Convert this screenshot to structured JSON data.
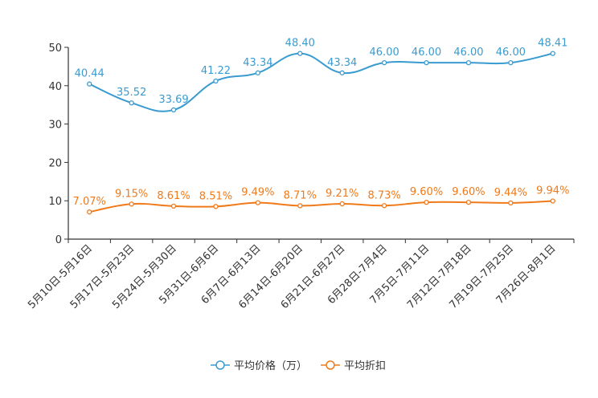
{
  "chart_data": {
    "type": "line",
    "title": "",
    "xlabel": "",
    "ylabel": "",
    "ylim": [
      0,
      50
    ],
    "yticks": [
      0,
      10,
      20,
      30,
      40,
      50
    ],
    "grid": false,
    "legend_position": "bottom-center",
    "categories": [
      "5月10日-5月16日",
      "5月17日-5月23日",
      "5月24日-5月30日",
      "5月31日-6月6日",
      "6月7日-6月13日",
      "6月14日-6月20日",
      "6月21日-6月27日",
      "6月28日-7月4日",
      "7月5日-7月11日",
      "7月12日-7月18日",
      "7月19日-7月25日",
      "7月26日-8月1日"
    ],
    "series": [
      {
        "name": "平均价格（万）",
        "color": "#3a9bd0",
        "values": [
          40.44,
          35.52,
          33.69,
          41.22,
          43.34,
          48.4,
          43.34,
          46.0,
          46.0,
          46.0,
          46.0,
          48.41
        ],
        "labels": [
          "40.44",
          "35.52",
          "33.69",
          "41.22",
          "43.34",
          "48.40",
          "43.34",
          "46.00",
          "46.00",
          "46.00",
          "46.00",
          "48.41"
        ]
      },
      {
        "name": "平均折扣",
        "color": "#f07a1a",
        "values": [
          7.07,
          9.15,
          8.61,
          8.51,
          9.49,
          8.71,
          9.21,
          8.73,
          9.6,
          9.6,
          9.44,
          9.94
        ],
        "labels": [
          "7.07%",
          "9.15%",
          "8.61%",
          "8.51%",
          "9.49%",
          "8.71%",
          "9.21%",
          "8.73%",
          "9.60%",
          "9.60%",
          "9.44%",
          "9.94%"
        ]
      }
    ]
  }
}
